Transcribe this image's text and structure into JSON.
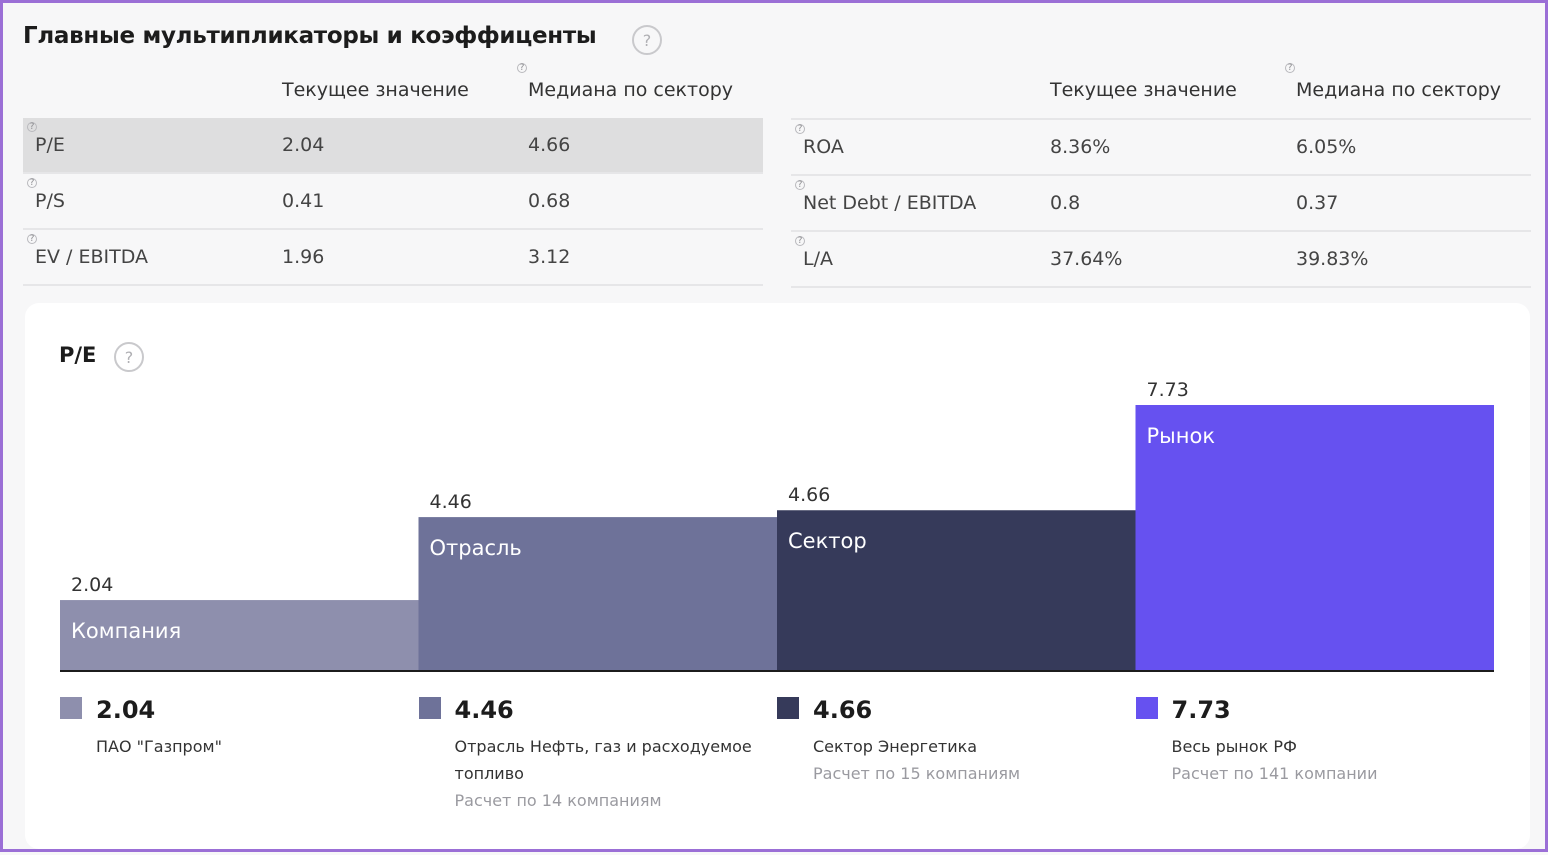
{
  "header": {
    "title": "Главные мультипликаторы и коэффиценты",
    "help_icon": "?"
  },
  "tables": [
    {
      "columns": [
        "Текущее значение",
        "Медиана по сектору"
      ],
      "rows": [
        {
          "label": "P/E",
          "current": "2.04",
          "median": "4.66",
          "highlighted": true
        },
        {
          "label": "P/S",
          "current": "0.41",
          "median": "0.68",
          "highlighted": false
        },
        {
          "label": "EV / EBITDA",
          "current": "1.96",
          "median": "3.12",
          "highlighted": false
        }
      ]
    },
    {
      "columns": [
        "Текущее значение",
        "Медиана по сектору"
      ],
      "rows": [
        {
          "label": "ROA",
          "current": "8.36%",
          "median": "6.05%",
          "highlighted": false
        },
        {
          "label": "Net Debt / EBITDA",
          "current": "0.8",
          "median": "0.37",
          "highlighted": false
        },
        {
          "label": "L/A",
          "current": "37.64%",
          "median": "39.83%",
          "highlighted": false
        }
      ]
    }
  ],
  "pe_card": {
    "title": "P/E",
    "help_icon": "?"
  },
  "chart_data": {
    "type": "bar",
    "title": "P/E",
    "categories": [
      "Компания",
      "Отрасль",
      "Сектор",
      "Рынок"
    ],
    "values": [
      2.04,
      4.46,
      4.66,
      7.73
    ],
    "value_labels": [
      "2.04",
      "4.46",
      "4.66",
      "7.73"
    ],
    "colors": [
      "#8e8fad",
      "#6e7299",
      "#363a5a",
      "#6651f0"
    ],
    "ylim": [
      0,
      7.73
    ],
    "grid": false,
    "legend": [
      {
        "value": "2.04",
        "name": "ПАО \"Газпром\"",
        "note": ""
      },
      {
        "value": "4.46",
        "name": "Отрасль Нефть, газ и расходуемое топливо",
        "note": "Расчет по 14 компаниям"
      },
      {
        "value": "4.66",
        "name": "Сектор Энергетика",
        "note": "Расчет по 15 компаниям"
      },
      {
        "value": "7.73",
        "name": "Весь рынок РФ",
        "note": "Расчет по 141 компании"
      }
    ]
  }
}
